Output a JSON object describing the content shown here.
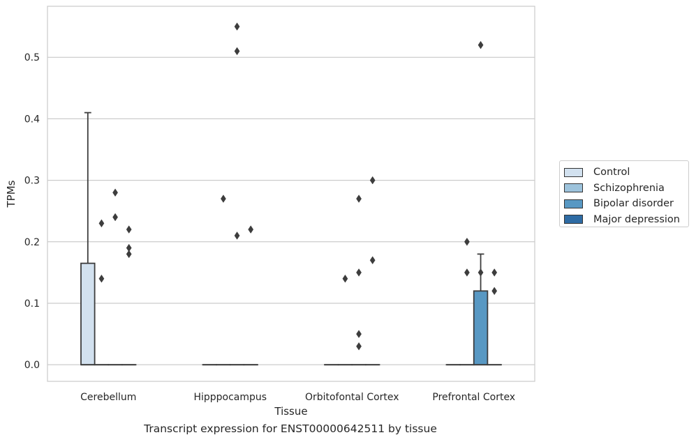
{
  "chart_data": {
    "type": "box",
    "title": "Transcript expression for ENST00000642511 by tissue",
    "xlabel": "Tissue",
    "ylabel": "TPMs",
    "ylim": [
      -0.027,
      0.583
    ],
    "yticks": [
      0.0,
      0.1,
      0.2,
      0.3,
      0.4,
      0.5
    ],
    "ytick_labels": [
      "0.0",
      "0.1",
      "0.2",
      "0.3",
      "0.4",
      "0.5"
    ],
    "grid": "horizontal",
    "legend_position": "right",
    "categories": [
      "Cerebellum",
      "Hipppocampus",
      "Orbitofontal Cortex",
      "Prefrontal Cortex"
    ],
    "series": [
      {
        "name": "Control",
        "color": "#d2e1ef",
        "boxes": [
          {
            "q1": 0.0,
            "median": 0.0,
            "q3": 0.165,
            "whisker_low": 0.0,
            "whisker_high": 0.41,
            "outliers": []
          },
          {
            "q1": 0.0,
            "median": 0.0,
            "q3": 0.0,
            "whisker_low": 0.0,
            "whisker_high": 0.0,
            "outliers": []
          },
          {
            "q1": 0.0,
            "median": 0.0,
            "q3": 0.0,
            "whisker_low": 0.0,
            "whisker_high": 0.0,
            "outliers": []
          },
          {
            "q1": 0.0,
            "median": 0.0,
            "q3": 0.0,
            "whisker_low": 0.0,
            "whisker_high": 0.0,
            "outliers": []
          }
        ]
      },
      {
        "name": "Schizophrenia",
        "color": "#9dc3dc",
        "boxes": [
          {
            "q1": 0.0,
            "median": 0.0,
            "q3": 0.0,
            "whisker_low": 0.0,
            "whisker_high": 0.0,
            "outliers": [
              0.14,
              0.23
            ]
          },
          {
            "q1": 0.0,
            "median": 0.0,
            "q3": 0.0,
            "whisker_low": 0.0,
            "whisker_high": 0.0,
            "outliers": [
              0.27
            ]
          },
          {
            "q1": 0.0,
            "median": 0.0,
            "q3": 0.0,
            "whisker_low": 0.0,
            "whisker_high": 0.0,
            "outliers": [
              0.14
            ]
          },
          {
            "q1": 0.0,
            "median": 0.0,
            "q3": 0.0,
            "whisker_low": 0.0,
            "whisker_high": 0.0,
            "outliers": [
              0.15,
              0.2
            ]
          }
        ]
      },
      {
        "name": "Bipolar disorder",
        "color": "#5898c3",
        "boxes": [
          {
            "q1": 0.0,
            "median": 0.0,
            "q3": 0.0,
            "whisker_low": 0.0,
            "whisker_high": 0.0,
            "outliers": [
              0.24,
              0.28
            ]
          },
          {
            "q1": 0.0,
            "median": 0.0,
            "q3": 0.0,
            "whisker_low": 0.0,
            "whisker_high": 0.0,
            "outliers": [
              0.21,
              0.51,
              0.55
            ]
          },
          {
            "q1": 0.0,
            "median": 0.0,
            "q3": 0.0,
            "whisker_low": 0.0,
            "whisker_high": 0.0,
            "outliers": [
              0.03,
              0.05,
              0.15,
              0.27
            ]
          },
          {
            "q1": 0.0,
            "median": 0.0,
            "q3": 0.12,
            "whisker_low": 0.0,
            "whisker_high": 0.18,
            "outliers": [
              0.15,
              0.52
            ]
          }
        ]
      },
      {
        "name": "Major depression",
        "color": "#2e6ba4",
        "boxes": [
          {
            "q1": 0.0,
            "median": 0.0,
            "q3": 0.0,
            "whisker_low": 0.0,
            "whisker_high": 0.0,
            "outliers": [
              0.18,
              0.19,
              0.22
            ]
          },
          {
            "q1": 0.0,
            "median": 0.0,
            "q3": 0.0,
            "whisker_low": 0.0,
            "whisker_high": 0.0,
            "outliers": [
              0.22
            ]
          },
          {
            "q1": 0.0,
            "median": 0.0,
            "q3": 0.0,
            "whisker_low": 0.0,
            "whisker_high": 0.0,
            "outliers": [
              0.17,
              0.3
            ]
          },
          {
            "q1": 0.0,
            "median": 0.0,
            "q3": 0.0,
            "whisker_low": 0.0,
            "whisker_high": 0.0,
            "outliers": [
              0.12,
              0.15
            ]
          }
        ]
      }
    ]
  }
}
